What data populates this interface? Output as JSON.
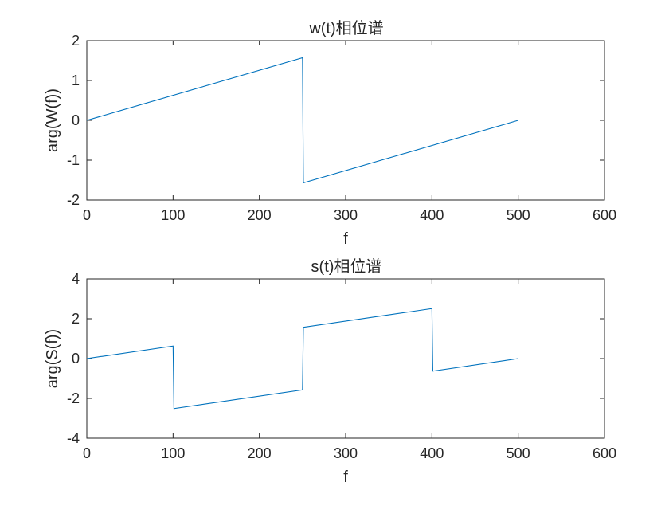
{
  "chart_data": [
    {
      "type": "line",
      "title": "w(t)相位谱",
      "xlabel": "f",
      "ylabel": "arg(W(f))",
      "xlim": [
        0,
        600
      ],
      "ylim": [
        -2,
        2
      ],
      "xticks": [
        0,
        100,
        200,
        300,
        400,
        500,
        600
      ],
      "yticks": [
        -2,
        -1,
        0,
        1,
        2
      ],
      "xtick_labels": [
        "0",
        "100",
        "200",
        "300",
        "400",
        "500",
        "600"
      ],
      "ytick_labels": [
        "-2",
        "-1",
        "0",
        "1",
        "2"
      ],
      "grid": false,
      "series": [
        {
          "color": "#0072BD",
          "x": [
            0,
            250,
            251,
            500
          ],
          "y": [
            0,
            1.57,
            -1.57,
            0
          ]
        }
      ]
    },
    {
      "type": "line",
      "title": "s(t)相位谱",
      "xlabel": "f",
      "ylabel": "arg(S(f))",
      "xlim": [
        0,
        600
      ],
      "ylim": [
        -4,
        4
      ],
      "xticks": [
        0,
        100,
        200,
        300,
        400,
        500,
        600
      ],
      "yticks": [
        -4,
        -2,
        0,
        2,
        4
      ],
      "xtick_labels": [
        "0",
        "100",
        "200",
        "300",
        "400",
        "500",
        "600"
      ],
      "ytick_labels": [
        "-4",
        "-2",
        "0",
        "2",
        "4"
      ],
      "grid": false,
      "series": [
        {
          "color": "#0072BD",
          "x": [
            0,
            100,
            101,
            250,
            251,
            400,
            401,
            500
          ],
          "y": [
            0,
            0.63,
            -2.51,
            -1.57,
            1.57,
            2.51,
            -0.63,
            0
          ]
        }
      ]
    }
  ]
}
